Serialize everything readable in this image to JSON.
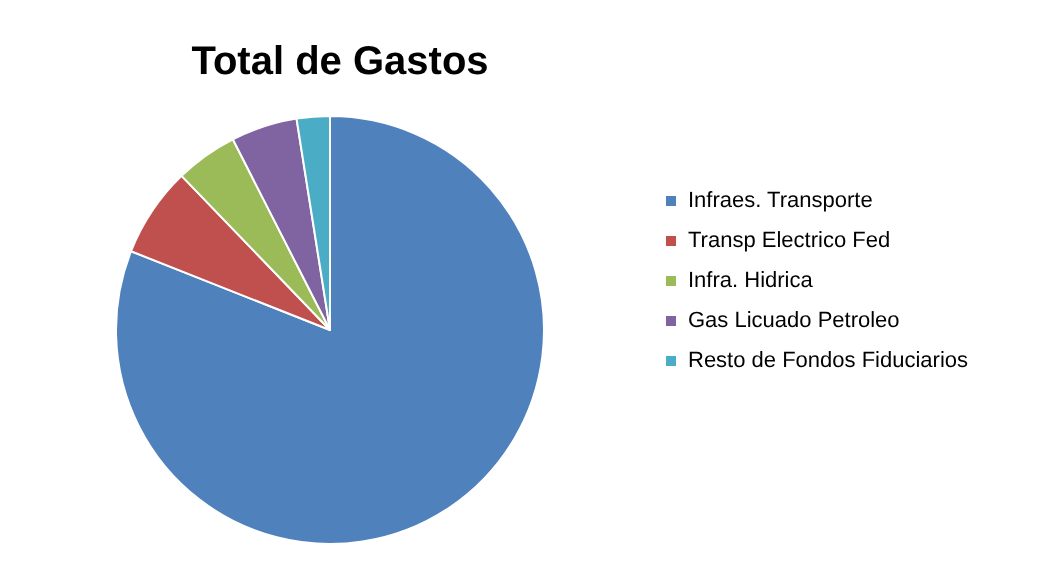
{
  "chart_data": {
    "type": "pie",
    "title": "Total de Gastos",
    "categories": [
      "Infraes. Transporte",
      "Transp Electrico Fed",
      "Infra. Hidrica",
      "Gas Licuado Petroleo",
      "Resto de Fondos Fiduciarios"
    ],
    "values": [
      81,
      6.8,
      4.7,
      5,
      2.5
    ],
    "colors": [
      "#4f81bd",
      "#c0504d",
      "#9bbb59",
      "#8064a2",
      "#4bacc6"
    ],
    "legend": "right"
  }
}
